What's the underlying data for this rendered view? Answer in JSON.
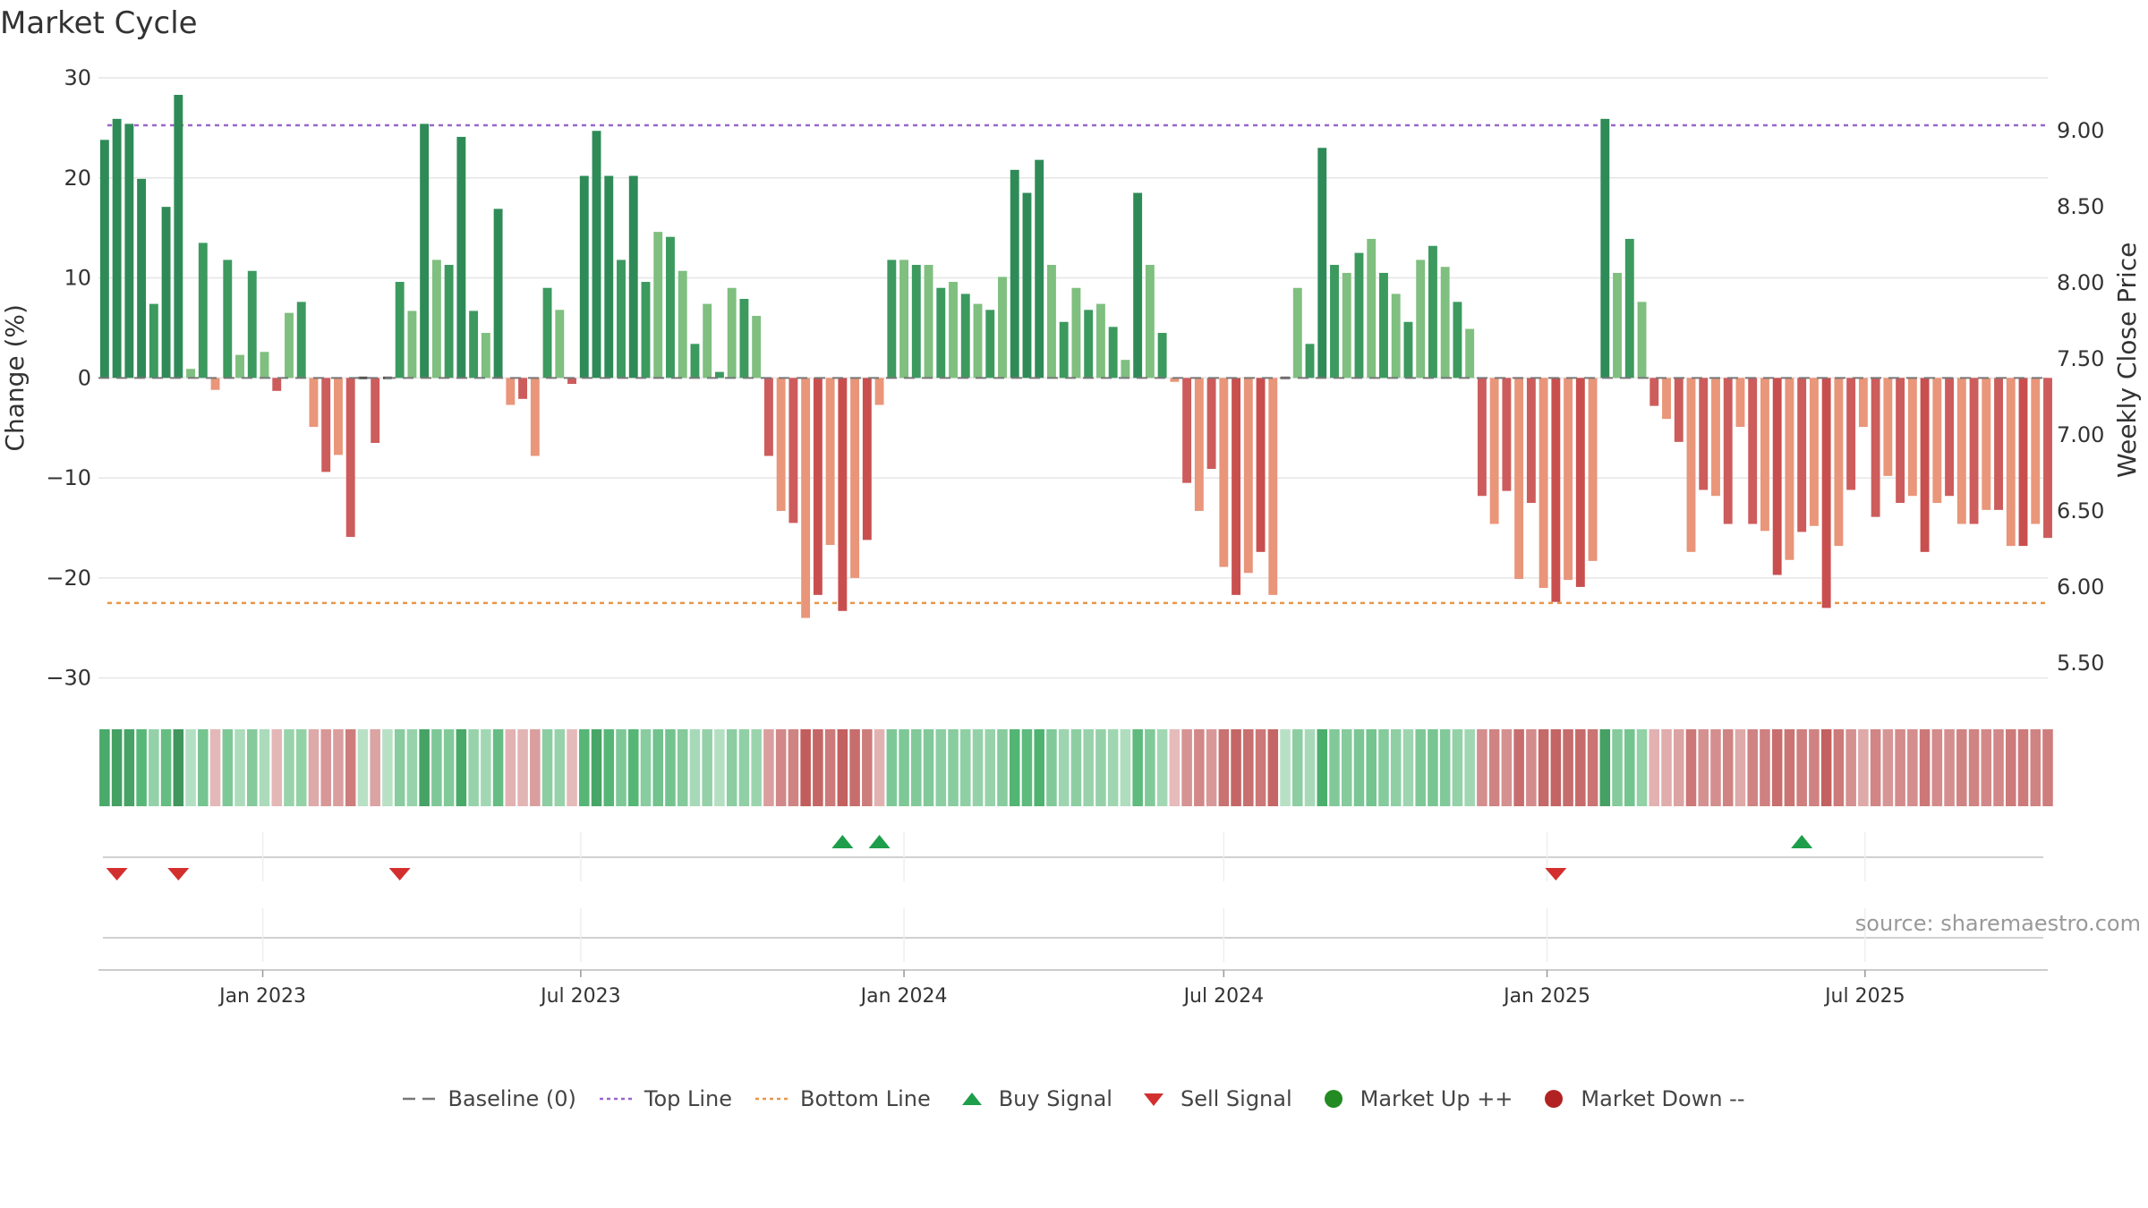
{
  "title": "Market Cycle",
  "source": "source: sharemaestro.com",
  "chart_data": {
    "type": "bar",
    "title": "Market Cycle",
    "ylabel": "Change (%)",
    "y2label": "Weekly Close Price",
    "ylim": [
      -32,
      30
    ],
    "yticks": [
      30,
      20,
      10,
      0,
      -10,
      -20,
      -30
    ],
    "ytick_labels": [
      "30",
      "20",
      "10",
      "0",
      "−10",
      "−20",
      "−30"
    ],
    "y2lim": [
      5.2,
      9.55
    ],
    "y2ticks": [
      9.0,
      8.5,
      8.0,
      7.5,
      7.0,
      6.5,
      6.0,
      5.5
    ],
    "y2tick_labels": [
      "9.00",
      "8.50",
      "8.00",
      "7.50",
      "7.00",
      "6.50",
      "6.00",
      "5.50"
    ],
    "x_start": "2022-10-03",
    "x_end": "2025-09-22",
    "x_ticks": [
      "2023-01-01",
      "2023-07-01",
      "2024-01-01",
      "2024-07-01",
      "2025-01-01",
      "2025-07-01"
    ],
    "x_tick_labels": [
      "Jan 2023",
      "Jul 2023",
      "Jan 2024",
      "Jul 2024",
      "Jan 2025",
      "Jul 2025"
    ],
    "top_line": 25.5,
    "bottom_line": -22.5,
    "values": [
      23.8,
      25.9,
      25.4,
      19.9,
      7.4,
      17.1,
      28.3,
      0.9,
      13.5,
      -1.2,
      11.8,
      2.3,
      10.7,
      2.6,
      -1.3,
      6.5,
      7.6,
      -4.9,
      -9.4,
      -7.7,
      -15.9,
      0,
      -6.5,
      0,
      9.6,
      6.7,
      25.4,
      11.8,
      11.3,
      24.1,
      6.7,
      4.5,
      16.9,
      -2.7,
      -2.1,
      -7.8,
      9.0,
      6.8,
      -0.6,
      20.2,
      24.7,
      20.2,
      11.8,
      20.2,
      9.6,
      14.6,
      14.1,
      10.7,
      3.4,
      7.4,
      0.6,
      9.0,
      7.9,
      6.2,
      -7.8,
      -13.3,
      -14.5,
      -24.0,
      -21.7,
      -16.7,
      -23.3,
      -20.0,
      -16.2,
      -2.7,
      11.8,
      11.8,
      11.3,
      11.3,
      9.0,
      9.6,
      8.4,
      7.4,
      6.8,
      10.1,
      20.8,
      18.5,
      21.8,
      11.3,
      5.6,
      9.0,
      6.8,
      7.4,
      5.1,
      1.8,
      18.5,
      11.3,
      4.5,
      -0.4,
      -10.5,
      -13.3,
      -9.1,
      -18.9,
      -21.7,
      -19.5,
      -17.4,
      -21.7,
      0,
      9.0,
      3.4,
      23.0,
      11.3,
      10.5,
      12.5,
      13.9,
      10.5,
      8.4,
      5.6,
      11.8,
      13.2,
      11.1,
      7.6,
      4.9,
      -11.8,
      -14.6,
      -11.3,
      -20.1,
      -12.5,
      -21.0,
      -22.4,
      -20.2,
      -20.9,
      -18.3,
      25.9,
      10.5,
      13.9,
      7.6,
      -2.8,
      -4.1,
      -6.4,
      -17.4,
      -11.2,
      -11.8,
      -14.6,
      -4.9,
      -14.6,
      -15.3,
      -19.7,
      -18.2,
      -15.4,
      -14.8,
      -23.0,
      -16.8,
      -11.2,
      -4.9,
      -13.9,
      -9.8,
      -12.5,
      -11.8,
      -17.4,
      -12.5,
      -11.8,
      -14.6,
      -14.6,
      -13.2,
      -13.2,
      -16.8,
      -16.8,
      -14.6,
      -16.0
    ],
    "buy_signals": [
      "2023-11-27",
      "2023-12-18",
      "2025-05-26"
    ],
    "sell_signals": [
      "2022-10-10",
      "2022-11-14",
      "2023-03-20",
      "2025-01-06"
    ],
    "series_names": [
      "Baseline (0)",
      "Top Line",
      "Bottom Line",
      "Buy Signal",
      "Sell Signal",
      "Market Up ++",
      "Market Down --"
    ]
  },
  "legend": [
    {
      "label": "Baseline (0)",
      "icon": "dash-line-gray",
      "color": "#777777"
    },
    {
      "label": "Top Line",
      "icon": "dotted-line-purple",
      "color": "#9966cc"
    },
    {
      "label": "Bottom Line",
      "icon": "dotted-line-orange",
      "color": "#e8964a"
    },
    {
      "label": "Buy Signal",
      "icon": "triangle-up-green",
      "color": "#1e9e4a"
    },
    {
      "label": "Sell Signal",
      "icon": "triangle-down-red",
      "color": "#d32f2f"
    },
    {
      "label": "Market Up ++",
      "icon": "circle-green",
      "color": "#228b22"
    },
    {
      "label": "Market Down --",
      "icon": "circle-red",
      "color": "#b22222"
    }
  ]
}
